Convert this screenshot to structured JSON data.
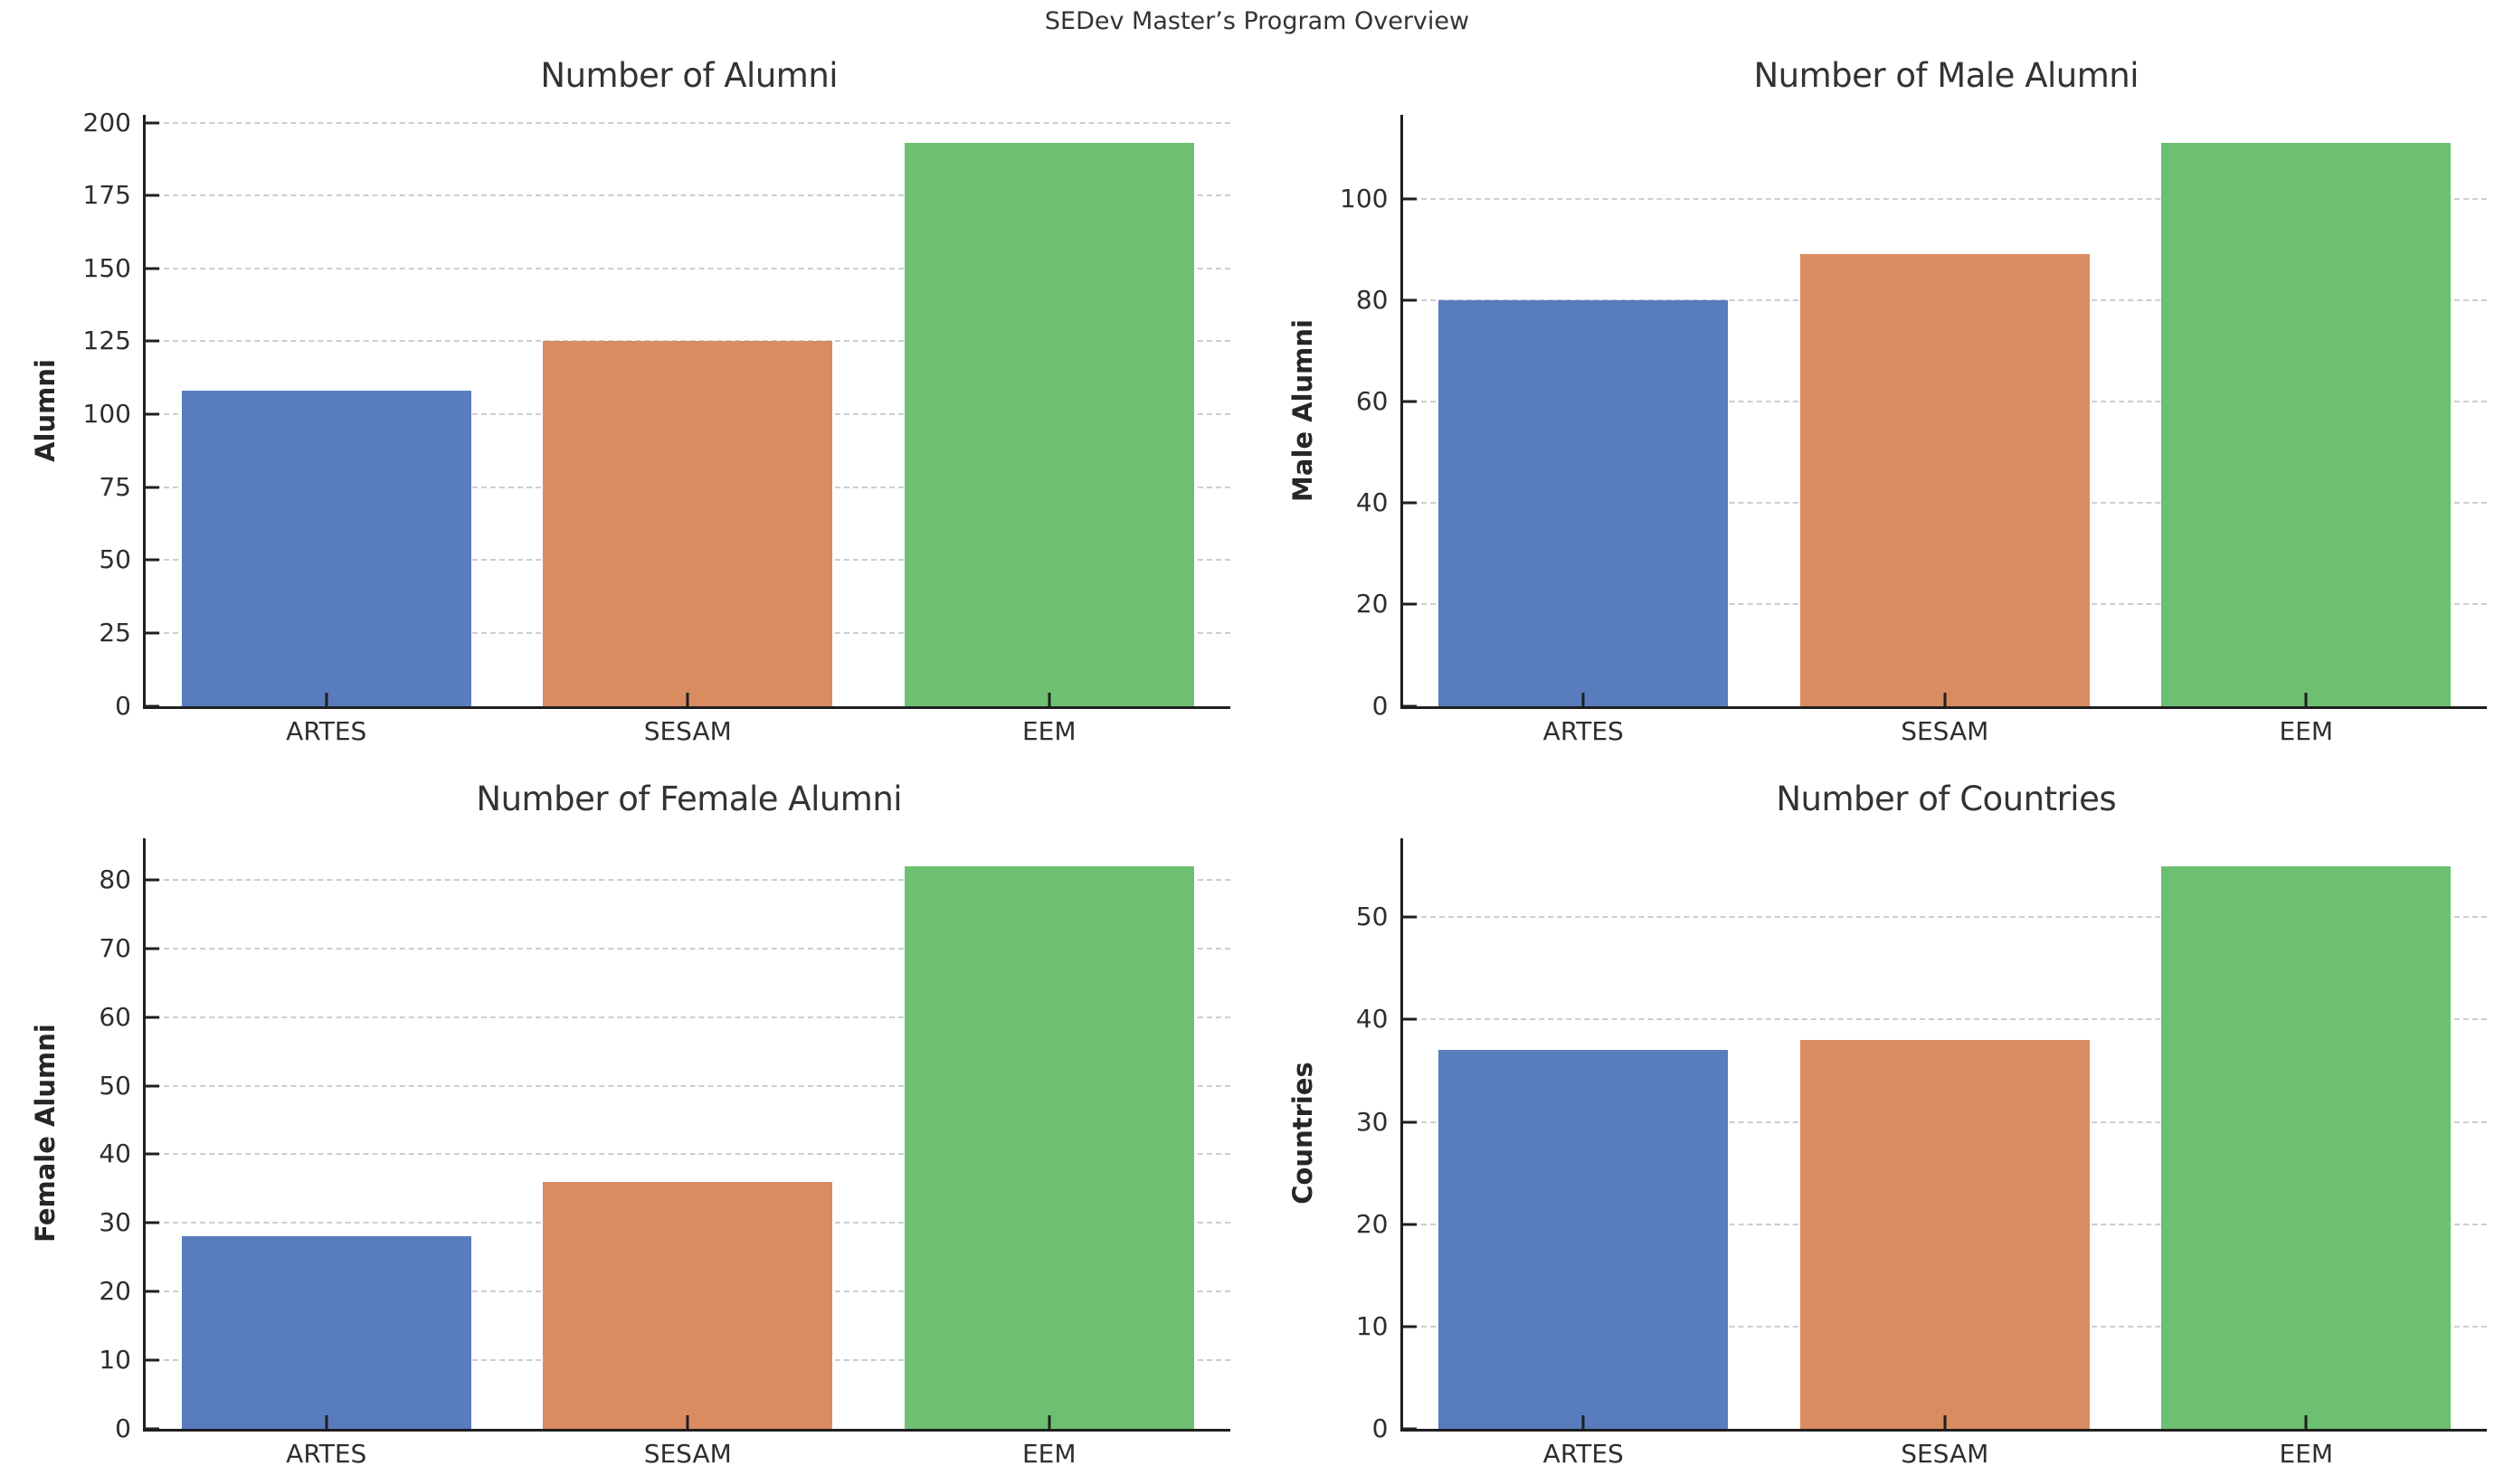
{
  "figure": {
    "suptitle": "SEDev Master’s Program Overview"
  },
  "palette": {
    "artes_blue": "#587CBE",
    "sesam_orange": "#D88C5F",
    "eem_green": "#6DC071",
    "grid_gray": "#cdcdcd",
    "spine_dark": "#1f1f1f"
  },
  "chart_data": [
    {
      "type": "bar",
      "title": "Number of Alumni",
      "ylabel": "Alumni",
      "xlabel": "",
      "categories": [
        "ARTES",
        "SESAM",
        "EEM"
      ],
      "values": [
        108,
        125,
        193
      ],
      "yticks": [
        0,
        25,
        50,
        75,
        100,
        125,
        150,
        175,
        200
      ],
      "ylim": [
        0,
        202.65
      ],
      "grid": "dashed-horizontal",
      "legend": "none",
      "colors": [
        "#587CBE",
        "#D88C5F",
        "#6DC071"
      ]
    },
    {
      "type": "bar",
      "title": "Number of Male Alumni",
      "ylabel": "Male Alumni",
      "xlabel": "",
      "categories": [
        "ARTES",
        "SESAM",
        "EEM"
      ],
      "values": [
        80,
        89,
        111
      ],
      "yticks": [
        0,
        20,
        40,
        60,
        80,
        100
      ],
      "ylim": [
        0,
        116.55
      ],
      "grid": "dashed-horizontal",
      "legend": "none",
      "colors": [
        "#587CBE",
        "#D88C5F",
        "#6DC071"
      ]
    },
    {
      "type": "bar",
      "title": "Number of Female Alumni",
      "ylabel": "Female Alumni",
      "xlabel": "",
      "categories": [
        "ARTES",
        "SESAM",
        "EEM"
      ],
      "values": [
        28,
        36,
        82
      ],
      "yticks": [
        0,
        10,
        20,
        30,
        40,
        50,
        60,
        70,
        80
      ],
      "ylim": [
        0,
        86.1
      ],
      "grid": "dashed-horizontal",
      "legend": "none",
      "colors": [
        "#587CBE",
        "#D88C5F",
        "#6DC071"
      ]
    },
    {
      "type": "bar",
      "title": "Number of Countries",
      "ylabel": "Countries",
      "xlabel": "",
      "categories": [
        "ARTES",
        "SESAM",
        "EEM"
      ],
      "values": [
        37,
        38,
        55
      ],
      "yticks": [
        0,
        10,
        20,
        30,
        40,
        50
      ],
      "ylim": [
        0,
        57.75
      ],
      "grid": "dashed-horizontal",
      "legend": "none",
      "colors": [
        "#587CBE",
        "#D88C5F",
        "#6DC071"
      ]
    }
  ]
}
